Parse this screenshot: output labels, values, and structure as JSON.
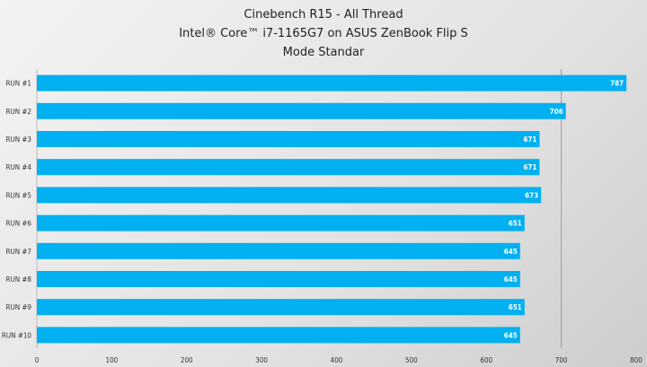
{
  "chart_data": {
    "type": "bar",
    "orientation": "horizontal",
    "title": [
      "Cinebench R15 - All Thread",
      "Intel® Core™ i7-1165G7 on ASUS ZenBook Flip S",
      "Mode Standar"
    ],
    "categories": [
      "RUN #1",
      "RUN #2",
      "RUN #3",
      "RUN #4",
      "RUN #5",
      "RUN #6",
      "RUN #7",
      "RUN #8",
      "RUN #9",
      "RUN #10"
    ],
    "values": [
      787,
      706,
      671,
      671,
      673,
      651,
      645,
      645,
      651,
      645
    ],
    "xlim": [
      0,
      800
    ],
    "xticks": [
      0,
      100,
      200,
      300,
      400,
      500,
      600,
      700,
      800
    ],
    "xlabel": "",
    "ylabel": "",
    "grid": "vertical at 700",
    "bar_color": "#00b0f0",
    "legend": "none"
  }
}
